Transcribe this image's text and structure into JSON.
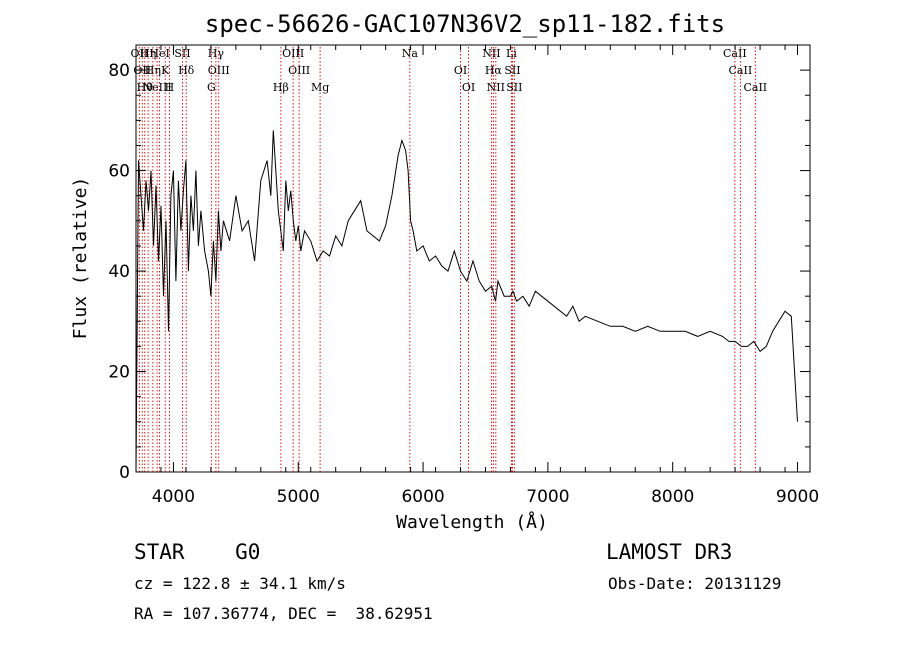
{
  "chart_data": {
    "type": "line",
    "title": "spec-56626-GAC107N36V2_sp11-182.fits",
    "xlabel": "Wavelength (Å)",
    "ylabel": "Flux (relative)",
    "xlim": [
      3700,
      9100
    ],
    "ylim": [
      0,
      85
    ],
    "xticks": [
      4000,
      5000,
      6000,
      7000,
      8000,
      9000
    ],
    "yticks": [
      0,
      20,
      40,
      60,
      80
    ],
    "grid": false,
    "series": [
      {
        "color": "#000000",
        "x": [
          3700,
          3720,
          3740,
          3760,
          3780,
          3800,
          3820,
          3840,
          3860,
          3880,
          3900,
          3920,
          3940,
          3960,
          3980,
          4000,
          4020,
          4040,
          4060,
          4080,
          4100,
          4120,
          4140,
          4160,
          4180,
          4200,
          4220,
          4250,
          4280,
          4300,
          4320,
          4340,
          4360,
          4380,
          4400,
          4450,
          4500,
          4550,
          4600,
          4650,
          4700,
          4750,
          4780,
          4800,
          4820,
          4840,
          4860,
          4880,
          4900,
          4920,
          4940,
          4960,
          4980,
          5000,
          5020,
          5050,
          5100,
          5150,
          5200,
          5250,
          5300,
          5350,
          5400,
          5450,
          5500,
          5550,
          5600,
          5650,
          5700,
          5750,
          5800,
          5830,
          5860,
          5880,
          5900,
          5920,
          5950,
          6000,
          6050,
          6100,
          6150,
          6200,
          6250,
          6300,
          6350,
          6400,
          6450,
          6500,
          6550,
          6580,
          6600,
          6650,
          6700,
          6720,
          6750,
          6800,
          6850,
          6900,
          6950,
          7000,
          7050,
          7100,
          7150,
          7200,
          7250,
          7300,
          7400,
          7500,
          7600,
          7700,
          7800,
          7900,
          8000,
          8100,
          8200,
          8300,
          8400,
          8450,
          8500,
          8550,
          8600,
          8650,
          8700,
          8750,
          8800,
          8850,
          8900,
          8950,
          9000
        ],
        "y": [
          0,
          62,
          55,
          48,
          58,
          52,
          60,
          45,
          57,
          42,
          53,
          35,
          50,
          28,
          55,
          60,
          38,
          58,
          48,
          56,
          62,
          40,
          55,
          48,
          60,
          45,
          52,
          44,
          40,
          35,
          46,
          38,
          52,
          44,
          50,
          46,
          55,
          48,
          50,
          42,
          58,
          62,
          55,
          68,
          60,
          52,
          48,
          44,
          58,
          52,
          56,
          50,
          46,
          49,
          44,
          48,
          46,
          42,
          44,
          43,
          47,
          45,
          50,
          52,
          54,
          48,
          47,
          46,
          49,
          55,
          63,
          66,
          64,
          60,
          50,
          48,
          44,
          45,
          42,
          43,
          41,
          40,
          44,
          40,
          38,
          42,
          38,
          36,
          37,
          34,
          38,
          35,
          35,
          36,
          34,
          35,
          33,
          36,
          35,
          34,
          33,
          32,
          31,
          33,
          30,
          31,
          30,
          29,
          29,
          28,
          29,
          28,
          28,
          28,
          27,
          28,
          27,
          26,
          26,
          25,
          25,
          26,
          24,
          25,
          28,
          30,
          32,
          31,
          10
        ]
      }
    ],
    "lines": [
      {
        "x": 3727,
        "label": "OII"
      },
      {
        "x": 3750,
        "label": "OII"
      },
      {
        "x": 3770,
        "label": "Hθ"
      },
      {
        "x": 3797,
        "label": "Hη"
      },
      {
        "x": 3835,
        "label": "Hη"
      },
      {
        "x": 3869,
        "label": "NeIII"
      },
      {
        "x": 3889,
        "label": "HeI"
      },
      {
        "x": 3934,
        "label": "K"
      },
      {
        "x": 3968,
        "label": "H"
      },
      {
        "x": 4072,
        "label": "SII"
      },
      {
        "x": 4102,
        "label": "Hδ"
      },
      {
        "x": 4304,
        "label": "G"
      },
      {
        "x": 4340,
        "label": "Hγ"
      },
      {
        "x": 4363,
        "label": "OIII"
      },
      {
        "x": 4861,
        "label": "Hβ"
      },
      {
        "x": 4959,
        "label": "OIII"
      },
      {
        "x": 5007,
        "label": "OIII"
      },
      {
        "x": 5175,
        "label": "Mg"
      },
      {
        "x": 5894,
        "label": "Na"
      },
      {
        "x": 6300,
        "label": "OI"
      },
      {
        "x": 6364,
        "label": "OI"
      },
      {
        "x": 6548,
        "label": "NII"
      },
      {
        "x": 6563,
        "label": "Hα"
      },
      {
        "x": 6583,
        "label": "NII"
      },
      {
        "x": 6708,
        "label": "Li"
      },
      {
        "x": 6716,
        "label": "SII"
      },
      {
        "x": 6731,
        "label": "SII"
      },
      {
        "x": 8498,
        "label": "CaII"
      },
      {
        "x": 8542,
        "label": "CaII"
      },
      {
        "x": 8662,
        "label": "CaII"
      }
    ]
  },
  "info": {
    "class": "STAR    G0",
    "survey": "LAMOST DR3",
    "cz": "cz = 122.8 ± 34.1 km/s",
    "obs_date": "Obs-Date: 20131129",
    "coords": "RA = 107.36774, DEC =  38.62951"
  }
}
